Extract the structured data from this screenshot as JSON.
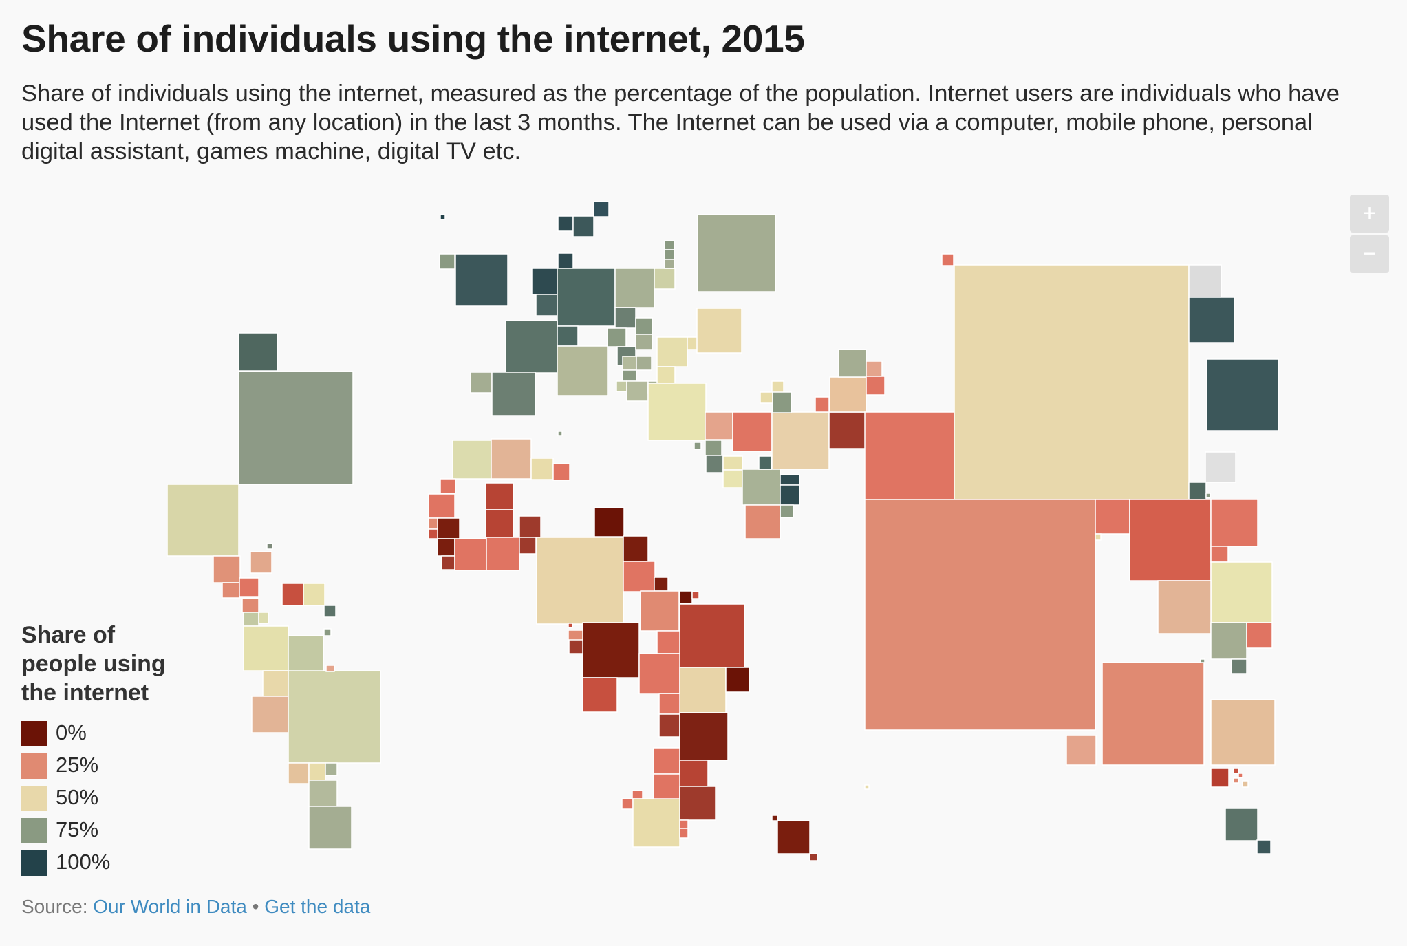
{
  "title": "Share of individuals using the internet, 2015",
  "subtitle": "Share of individuals using the internet, measured as the percentage of the population. Internet users are individuals who have used the Internet (from any location) in the last 3 months. The Internet can be used via a computer, mobile phone, personal digital assistant, games machine, digital TV etc.",
  "zoom_controls": {
    "zoom_in": "+",
    "zoom_out": "−"
  },
  "legend": {
    "title": "Share of people using the internet",
    "items": [
      {
        "label": "0%",
        "color": "#6b1306"
      },
      {
        "label": "25%",
        "color": "#e08a72"
      },
      {
        "label": "50%",
        "color": "#e8d8aa"
      },
      {
        "label": "75%",
        "color": "#8a9a82"
      },
      {
        "label": "100%",
        "color": "#23424a"
      }
    ]
  },
  "source": {
    "label": "Source:",
    "link_text": "Our World in Data",
    "separator": "•",
    "data_link_text": "Get the data"
  }
}
